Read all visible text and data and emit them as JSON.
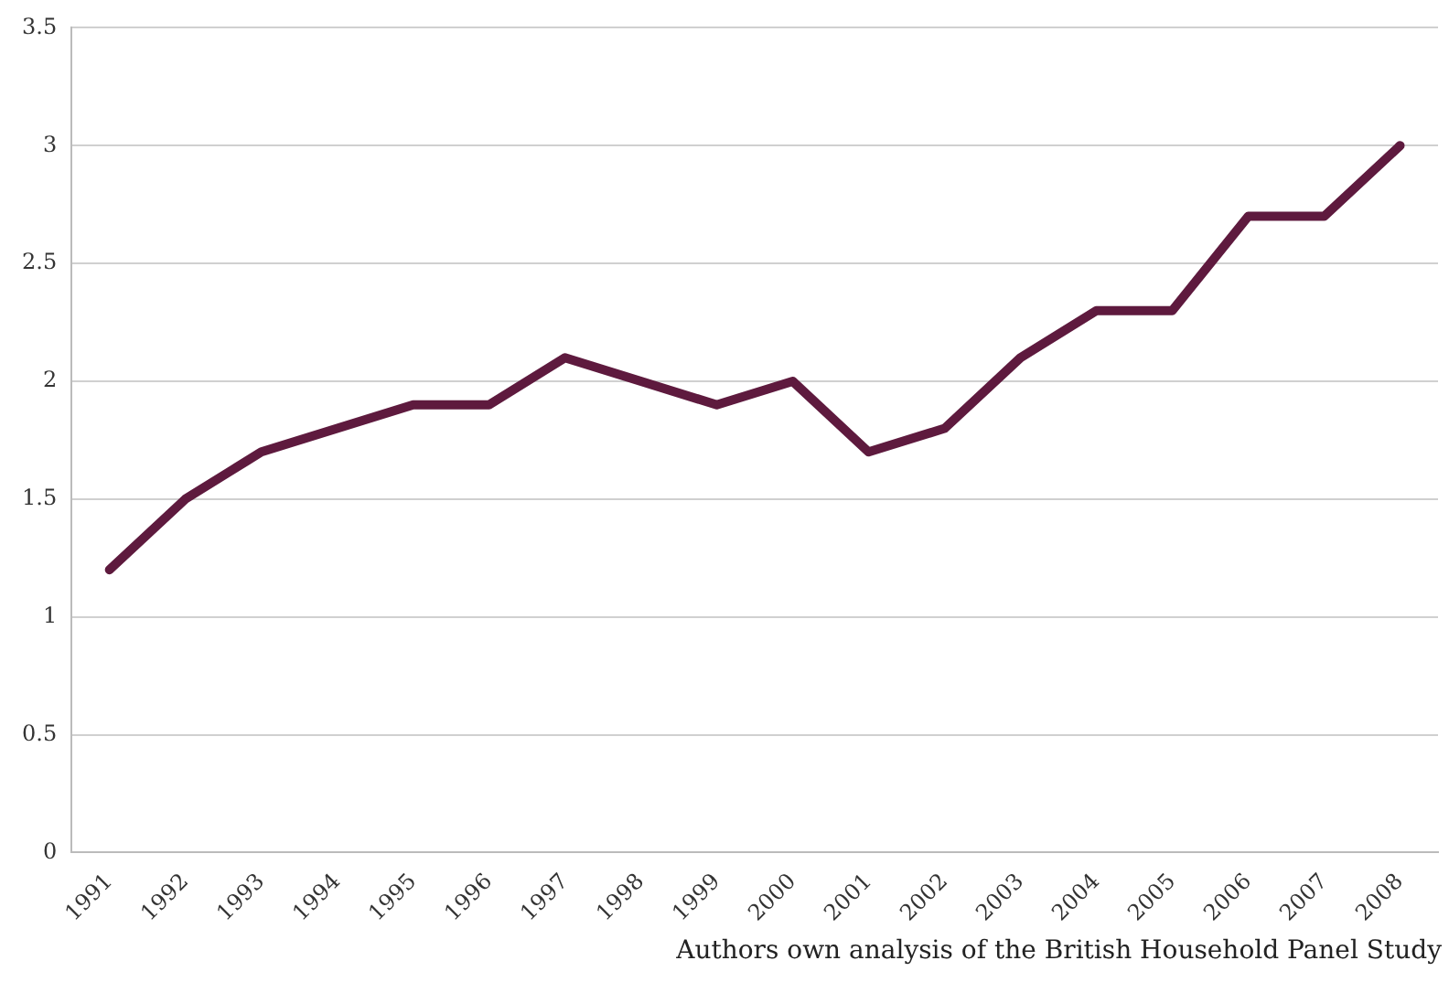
{
  "chart_data": {
    "type": "line",
    "categories": [
      "1991",
      "1992",
      "1993",
      "1994",
      "1995",
      "1996",
      "1997",
      "1998",
      "1999",
      "2000",
      "2001",
      "2002",
      "2003",
      "2004",
      "2005",
      "2006",
      "2007",
      "2008"
    ],
    "series": [
      {
        "color": "#5e1a3e",
        "values": [
          1.2,
          1.5,
          1.7,
          1.8,
          1.9,
          1.9,
          2.1,
          2.0,
          1.9,
          2.0,
          1.7,
          1.8,
          2.1,
          2.3,
          2.3,
          2.7,
          2.7,
          3.0
        ]
      }
    ],
    "ylim": [
      0,
      3.5
    ],
    "yticks": [
      0,
      0.5,
      1,
      1.5,
      2,
      2.5,
      3,
      3.5
    ],
    "grid": "y",
    "legend": false,
    "marker": "none",
    "line_style": "solid",
    "annotations": [
      "Authors own analysis of the British Household Panel Study"
    ]
  }
}
